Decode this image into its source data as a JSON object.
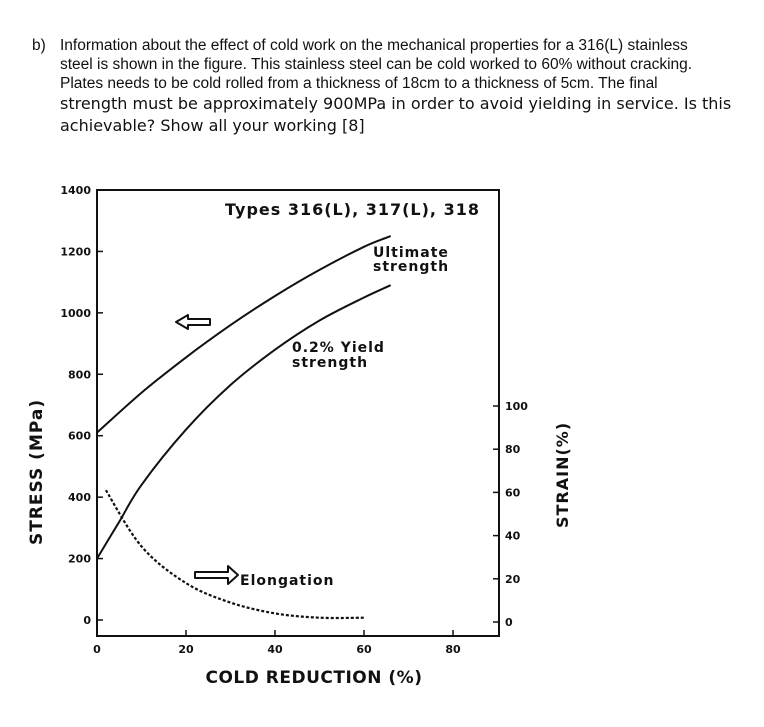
{
  "question": {
    "label": "b)",
    "lines": [
      "Information about the effect of cold work on the mechanical properties for a 316(L) stainless",
      "steel is shown in the figure. This stainless steel can be cold worked to 60% without cracking.",
      "Plates needs to be cold rolled from a thickness of 18cm to a thickness of 5cm. The final",
      "strength must be approximately 900MPa in order to avoid yielding in service. Is this",
      "achievable? Show all your working [8]"
    ]
  },
  "chart_data": {
    "type": "line",
    "title": "Types 316(L), 317(L), 318",
    "xlabel": "COLD REDUCTION (%)",
    "ylabel": "STRESS (MPa)",
    "y2label": "STRAIN(%)",
    "xlim": [
      0,
      100
    ],
    "ylim": [
      0,
      1400
    ],
    "y2lim": [
      0,
      100
    ],
    "xticks": [
      "0",
      "20",
      "40",
      "60",
      "80"
    ],
    "yticks": [
      "0",
      "200",
      "400",
      "600",
      "800",
      "1000",
      "1200",
      "1400"
    ],
    "y2ticks": [
      "0",
      "20",
      "40",
      "60",
      "80",
      "100"
    ],
    "grid": false,
    "series": [
      {
        "name": "Ultimate strength",
        "label_lines": [
          "Ultimate",
          "strength"
        ],
        "axis": "left",
        "style": "solid",
        "x": [
          0,
          10,
          20,
          30,
          40,
          50,
          60,
          66
        ],
        "y": [
          610,
          740,
          855,
          960,
          1055,
          1140,
          1215,
          1250
        ]
      },
      {
        "name": "0.2% Yield strength",
        "label_lines": [
          "0.2% Yield",
          "strength"
        ],
        "axis": "left",
        "style": "solid",
        "x": [
          0,
          5,
          10,
          20,
          30,
          40,
          50,
          60,
          66
        ],
        "y": [
          200,
          320,
          440,
          620,
          765,
          880,
          975,
          1050,
          1090
        ]
      },
      {
        "name": "Elongation",
        "label_lines": [
          "Elongation"
        ],
        "axis": "right",
        "style": "dashed",
        "x": [
          2,
          10,
          20,
          30,
          40,
          50,
          60
        ],
        "y": [
          61,
          35,
          18,
          9,
          4,
          2,
          2
        ]
      }
    ],
    "annotations": [
      {
        "type": "arrow-left",
        "near": "ultimate-strength-curve"
      },
      {
        "type": "arrow-right",
        "near": "elongation-label"
      }
    ]
  }
}
